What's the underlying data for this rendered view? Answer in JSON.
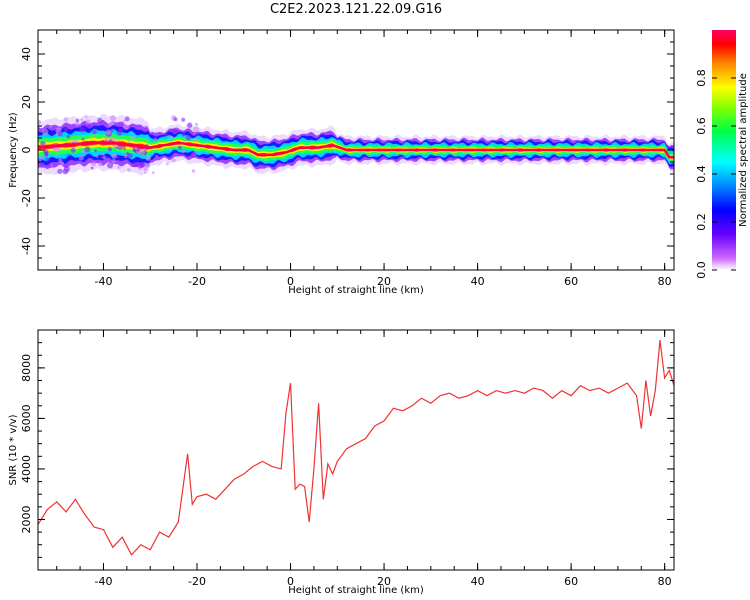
{
  "title": "C2E2.2023.121.22.09.G16",
  "colorbar": {
    "label": "Normalized spectral amplitude",
    "ticks": [
      "0.0",
      "0.2",
      "0.4",
      "0.6",
      "0.8"
    ],
    "tick_values": [
      0.0,
      0.2,
      0.4,
      0.6,
      0.8
    ],
    "range": [
      0.0,
      1.0
    ]
  },
  "chart_data": [
    {
      "type": "heatmap",
      "xlabel": "Height of straight line (km)",
      "ylabel": "Frequency (Hz)",
      "xlim": [
        -54,
        82
      ],
      "ylim": [
        -50,
        50
      ],
      "xticks": [
        -40,
        -20,
        0,
        20,
        40,
        60,
        80
      ],
      "xtick_labels": [
        "-40",
        "-20",
        "0",
        "20",
        "40",
        "60",
        "80"
      ],
      "yticks": [
        -40,
        -20,
        0,
        20,
        40
      ],
      "ytick_labels": [
        "-40",
        "-20",
        "0",
        "20",
        "40"
      ],
      "ridge": {
        "x": [
          -54,
          -48,
          -42,
          -38,
          -34,
          -30,
          -27,
          -24,
          -20,
          -16,
          -12,
          -9,
          -7,
          -4,
          -1,
          2,
          6,
          9,
          12,
          20,
          40,
          60,
          70,
          78,
          80,
          81
        ],
        "frequency": [
          1,
          2,
          3,
          3,
          2,
          1,
          2,
          3,
          2,
          1,
          0,
          0,
          -2,
          -2,
          -1,
          1,
          1,
          2,
          0,
          0,
          0,
          0,
          0,
          0,
          0,
          -3
        ]
      }
    },
    {
      "type": "line",
      "xlabel": "Height of straight line (km)",
      "ylabel": "SNR (10 * v/v)",
      "xlim": [
        -54,
        82
      ],
      "ylim": [
        0,
        9500
      ],
      "xticks": [
        -40,
        -20,
        0,
        20,
        40,
        60,
        80
      ],
      "xtick_labels": [
        "-40",
        "-20",
        "0",
        "20",
        "40",
        "60",
        "80"
      ],
      "yticks": [
        2000,
        4000,
        6000,
        8000
      ],
      "ytick_labels": [
        "2000",
        "4000",
        "6000",
        "8000"
      ],
      "series": [
        {
          "color": "#ee3333",
          "x": [
            -54,
            -52,
            -50,
            -48,
            -46,
            -44,
            -42,
            -40,
            -38,
            -36,
            -34,
            -32,
            -30,
            -28,
            -26,
            -24,
            -22,
            -21,
            -20,
            -18,
            -16,
            -14,
            -12,
            -10,
            -8,
            -6,
            -4,
            -2,
            -1,
            0,
            1,
            2,
            3,
            4,
            5,
            6,
            7,
            8,
            9,
            10,
            12,
            14,
            16,
            18,
            20,
            22,
            24,
            26,
            28,
            30,
            32,
            34,
            36,
            38,
            40,
            42,
            44,
            46,
            48,
            50,
            52,
            54,
            56,
            58,
            60,
            62,
            64,
            66,
            68,
            70,
            72,
            74,
            75,
            76,
            77,
            78,
            79,
            80,
            81,
            82
          ],
          "values": [
            1800,
            2400,
            2700,
            2300,
            2800,
            2200,
            1700,
            1600,
            900,
            1300,
            600,
            1000,
            800,
            1500,
            1300,
            1900,
            4600,
            2600,
            2900,
            3000,
            2800,
            3200,
            3600,
            3800,
            4100,
            4300,
            4100,
            4000,
            6200,
            7400,
            3200,
            3400,
            3300,
            1900,
            4000,
            6600,
            2800,
            4200,
            3800,
            4300,
            4800,
            5000,
            5200,
            5700,
            5900,
            6400,
            6300,
            6500,
            6800,
            6600,
            6900,
            7000,
            6800,
            6900,
            7100,
            6900,
            7100,
            7000,
            7100,
            7000,
            7200,
            7100,
            6800,
            7100,
            6900,
            7300,
            7100,
            7200,
            7000,
            7200,
            7400,
            6900,
            5600,
            7500,
            6100,
            7100,
            9100,
            7600,
            7900,
            7300
          ]
        }
      ]
    }
  ]
}
